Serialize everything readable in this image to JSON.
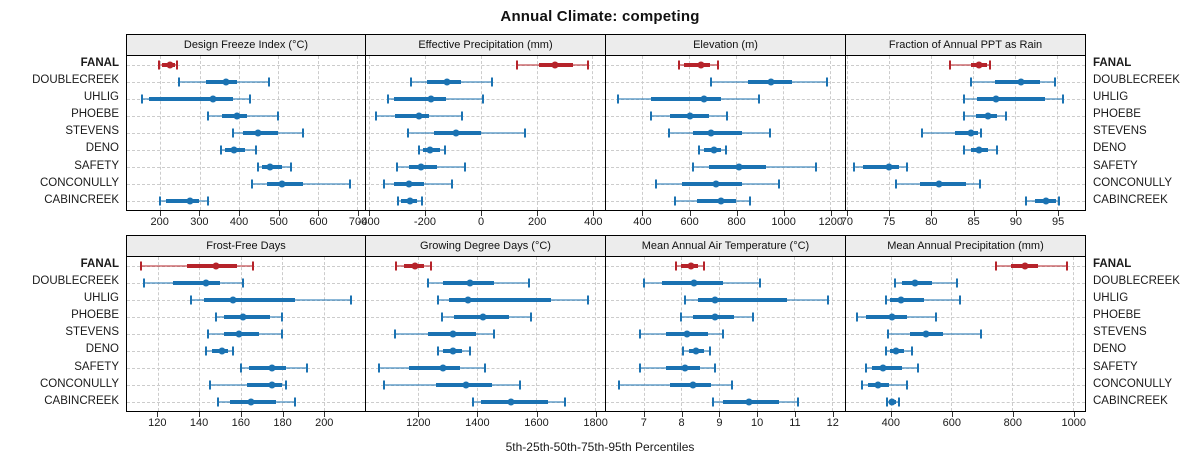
{
  "title": "Annual Climate: competing",
  "xlabel": "5th-25th-50th-75th-95th Percentiles",
  "sites": [
    "FANAL",
    "DOUBLECREEK",
    "UHLIG",
    "PHOEBE",
    "STEVENS",
    "DENO",
    "SAFETY",
    "CONCONULLY",
    "CABINCREEK"
  ],
  "highlight_site": "FANAL",
  "colors": {
    "highlight": "#b6232a",
    "normal": "#1a72b2",
    "strip_bg": "#ececec",
    "grid": "#cccccc",
    "border": "#000000"
  },
  "percentile_levels": [
    5,
    25,
    50,
    75,
    95
  ],
  "chart_data": [
    {
      "type": "interval",
      "title": "Design Freeze Index (°C)",
      "xlim": [
        115,
        720
      ],
      "ticks": [
        200,
        300,
        400,
        500,
        600,
        700
      ],
      "series": [
        {
          "site": "FANAL",
          "values": [
            197,
            204,
            224,
            236,
            243
          ]
        },
        {
          "site": "DOUBLECREEK",
          "values": [
            246,
            316,
            366,
            394,
            477
          ]
        },
        {
          "site": "UHLIG",
          "values": [
            154,
            172,
            333,
            384,
            428
          ]
        },
        {
          "site": "PHOEBE",
          "values": [
            320,
            356,
            394,
            419,
            500
          ]
        },
        {
          "site": "STEVENS",
          "values": [
            384,
            411,
            449,
            500,
            563
          ]
        },
        {
          "site": "DENO",
          "values": [
            354,
            365,
            388,
            415,
            443
          ]
        },
        {
          "site": "SAFETY",
          "values": [
            447,
            457,
            478,
            508,
            533
          ]
        },
        {
          "site": "CONCONULLY",
          "values": [
            432,
            470,
            510,
            563,
            683
          ]
        },
        {
          "site": "CABINCREEK",
          "values": [
            200,
            215,
            276,
            299,
            322
          ]
        }
      ]
    },
    {
      "type": "interval",
      "title": "Effective Precipitation (mm)",
      "xlim": [
        -410,
        445
      ],
      "ticks": [
        -400,
        -200,
        0,
        200,
        400
      ],
      "series": [
        {
          "site": "FANAL",
          "values": [
            130,
            210,
            265,
            330,
            385
          ]
        },
        {
          "site": "DOUBLECREEK",
          "values": [
            -250,
            -190,
            -120,
            -70,
            40
          ]
        },
        {
          "site": "UHLIG",
          "values": [
            -332,
            -310,
            -178,
            -124,
            7
          ]
        },
        {
          "site": "PHOEBE",
          "values": [
            -375,
            -305,
            -220,
            -185,
            -65
          ]
        },
        {
          "site": "STEVENS",
          "values": [
            -260,
            -165,
            -87,
            0,
            160
          ]
        },
        {
          "site": "DENO",
          "values": [
            -220,
            -207,
            -182,
            -145,
            -126
          ]
        },
        {
          "site": "SAFETY",
          "values": [
            -300,
            -255,
            -215,
            -155,
            -57
          ]
        },
        {
          "site": "CONCONULLY",
          "values": [
            -345,
            -310,
            -257,
            -202,
            -103
          ]
        },
        {
          "site": "CABINCREEK",
          "values": [
            -296,
            -286,
            -251,
            -227,
            -209
          ]
        }
      ]
    },
    {
      "type": "interval",
      "title": "Elevation (m)",
      "xlim": [
        245,
        1265
      ],
      "ticks": [
        400,
        600,
        800,
        1000,
        1200
      ],
      "series": [
        {
          "site": "FANAL",
          "values": [
            557,
            580,
            652,
            688,
            725
          ]
        },
        {
          "site": "DOUBLECREEK",
          "values": [
            695,
            850,
            950,
            1040,
            1190
          ]
        },
        {
          "site": "UHLIG",
          "values": [
            295,
            435,
            665,
            735,
            900
          ]
        },
        {
          "site": "PHOEBE",
          "values": [
            435,
            520,
            605,
            685,
            760
          ]
        },
        {
          "site": "STEVENS",
          "values": [
            515,
            615,
            695,
            825,
            945
          ]
        },
        {
          "site": "DENO",
          "values": [
            640,
            665,
            705,
            735,
            756
          ]
        },
        {
          "site": "SAFETY",
          "values": [
            615,
            685,
            812,
            926,
            1140
          ]
        },
        {
          "site": "CONCONULLY",
          "values": [
            460,
            570,
            714,
            826,
            985
          ]
        },
        {
          "site": "CABINCREEK",
          "values": [
            540,
            635,
            735,
            799,
            860
          ]
        }
      ]
    },
    {
      "type": "interval",
      "title": "Fraction of Annual PPT as Rain",
      "xlim": [
        69.9,
        98.3
      ],
      "ticks": [
        70,
        75,
        80,
        85,
        90,
        95
      ],
      "series": [
        {
          "site": "FANAL",
          "values": [
            82.3,
            84.8,
            85.7,
            86.6,
            87.0
          ]
        },
        {
          "site": "DOUBLECREEK",
          "values": [
            84.8,
            87.6,
            90.7,
            92.9,
            94.7
          ]
        },
        {
          "site": "UHLIG",
          "values": [
            83.9,
            85.5,
            87.7,
            93.5,
            95.7
          ]
        },
        {
          "site": "PHOEBE",
          "values": [
            83.9,
            85.4,
            86.8,
            87.8,
            88.9
          ]
        },
        {
          "site": "STEVENS",
          "values": [
            78.9,
            82.9,
            84.8,
            85.6,
            86.0
          ]
        },
        {
          "site": "DENO",
          "values": [
            83.9,
            84.8,
            85.7,
            86.8,
            87.8
          ]
        },
        {
          "site": "SAFETY",
          "values": [
            70.8,
            71.9,
            75.0,
            76.2,
            77.1
          ]
        },
        {
          "site": "CONCONULLY",
          "values": [
            75.9,
            78.7,
            81.0,
            84.2,
            85.8
          ]
        },
        {
          "site": "CABINCREEK",
          "values": [
            91.3,
            92.3,
            93.7,
            94.9,
            95.2
          ]
        }
      ]
    },
    {
      "type": "interval",
      "title": "Frost-Free Days",
      "xlim": [
        105,
        220
      ],
      "ticks": [
        120,
        140,
        160,
        180,
        200
      ],
      "series": [
        {
          "site": "FANAL",
          "values": [
            112,
            134,
            148,
            158,
            166
          ]
        },
        {
          "site": "DOUBLECREEK",
          "values": [
            113,
            127,
            143,
            150,
            161
          ]
        },
        {
          "site": "UHLIG",
          "values": [
            136,
            142,
            156,
            186,
            213
          ]
        },
        {
          "site": "PHOEBE",
          "values": [
            148,
            152,
            161,
            174,
            180
          ]
        },
        {
          "site": "STEVENS",
          "values": [
            144,
            152,
            159,
            169,
            180
          ]
        },
        {
          "site": "DENO",
          "values": [
            143,
            146,
            151,
            154,
            156
          ]
        },
        {
          "site": "SAFETY",
          "values": [
            160,
            164,
            175,
            182,
            192
          ]
        },
        {
          "site": "CONCONULLY",
          "values": [
            145,
            163,
            175,
            180,
            182
          ]
        },
        {
          "site": "CABINCREEK",
          "values": [
            149,
            155,
            165,
            177,
            186
          ]
        }
      ]
    },
    {
      "type": "interval",
      "title": "Growing Degree Days (°C)",
      "xlim": [
        1023,
        1835
      ],
      "ticks": [
        1200,
        1400,
        1600,
        1800
      ],
      "series": [
        {
          "site": "FANAL",
          "values": [
            1124,
            1152,
            1189,
            1220,
            1243
          ]
        },
        {
          "site": "DOUBLECREEK",
          "values": [
            1234,
            1283,
            1377,
            1458,
            1577
          ]
        },
        {
          "site": "UHLIG",
          "values": [
            1269,
            1305,
            1371,
            1650,
            1778
          ]
        },
        {
          "site": "PHOEBE",
          "values": [
            1280,
            1322,
            1422,
            1509,
            1585
          ]
        },
        {
          "site": "STEVENS",
          "values": [
            1122,
            1232,
            1317,
            1396,
            1458
          ]
        },
        {
          "site": "DENO",
          "values": [
            1266,
            1283,
            1319,
            1350,
            1375
          ]
        },
        {
          "site": "SAFETY",
          "values": [
            1068,
            1170,
            1285,
            1342,
            1428
          ]
        },
        {
          "site": "CONCONULLY",
          "values": [
            1085,
            1260,
            1362,
            1452,
            1545
          ]
        },
        {
          "site": "CABINCREEK",
          "values": [
            1385,
            1413,
            1515,
            1640,
            1700
          ]
        }
      ]
    },
    {
      "type": "interval",
      "title": "Mean Annual Air Temperature (°C)",
      "xlim": [
        6.0,
        12.35
      ],
      "ticks": [
        7,
        8,
        9,
        10,
        11,
        12
      ],
      "series": [
        {
          "site": "FANAL",
          "values": [
            7.85,
            8.0,
            8.25,
            8.45,
            8.6
          ]
        },
        {
          "site": "DOUBLECREEK",
          "values": [
            7.0,
            7.5,
            8.35,
            9.1,
            10.1
          ]
        },
        {
          "site": "UHLIG",
          "values": [
            8.1,
            8.45,
            8.9,
            10.8,
            11.9
          ]
        },
        {
          "site": "PHOEBE",
          "values": [
            8.0,
            8.3,
            8.9,
            9.4,
            9.9
          ]
        },
        {
          "site": "STEVENS",
          "values": [
            6.9,
            7.6,
            8.15,
            8.7,
            9.1
          ]
        },
        {
          "site": "DENO",
          "values": [
            8.05,
            8.2,
            8.4,
            8.6,
            8.75
          ]
        },
        {
          "site": "SAFETY",
          "values": [
            6.9,
            7.6,
            8.1,
            8.5,
            8.9
          ]
        },
        {
          "site": "CONCONULLY",
          "values": [
            6.35,
            7.7,
            8.3,
            8.8,
            9.35
          ]
        },
        {
          "site": "CABINCREEK",
          "values": [
            8.85,
            9.1,
            9.8,
            10.6,
            11.1
          ]
        }
      ]
    },
    {
      "type": "interval",
      "title": "Mean Annual Precipitation (mm)",
      "xlim": [
        253,
        1040
      ],
      "ticks": [
        400,
        600,
        800,
        1000
      ],
      "series": [
        {
          "site": "FANAL",
          "values": [
            746,
            796,
            842,
            884,
            981
          ]
        },
        {
          "site": "DOUBLECREEK",
          "values": [
            415,
            437,
            481,
            536,
            619
          ]
        },
        {
          "site": "UHLIG",
          "values": [
            385,
            398,
            434,
            510,
            630
          ]
        },
        {
          "site": "PHOEBE",
          "values": [
            288,
            320,
            403,
            453,
            550
          ]
        },
        {
          "site": "STEVENS",
          "values": [
            390,
            464,
            516,
            572,
            698
          ]
        },
        {
          "site": "DENO",
          "values": [
            385,
            398,
            418,
            444,
            470
          ]
        },
        {
          "site": "SAFETY",
          "values": [
            318,
            337,
            376,
            436,
            490
          ]
        },
        {
          "site": "CONCONULLY",
          "values": [
            307,
            326,
            359,
            396,
            453
          ]
        },
        {
          "site": "CABINCREEK",
          "values": [
            389,
            396,
            406,
            418,
            429
          ]
        }
      ]
    }
  ]
}
